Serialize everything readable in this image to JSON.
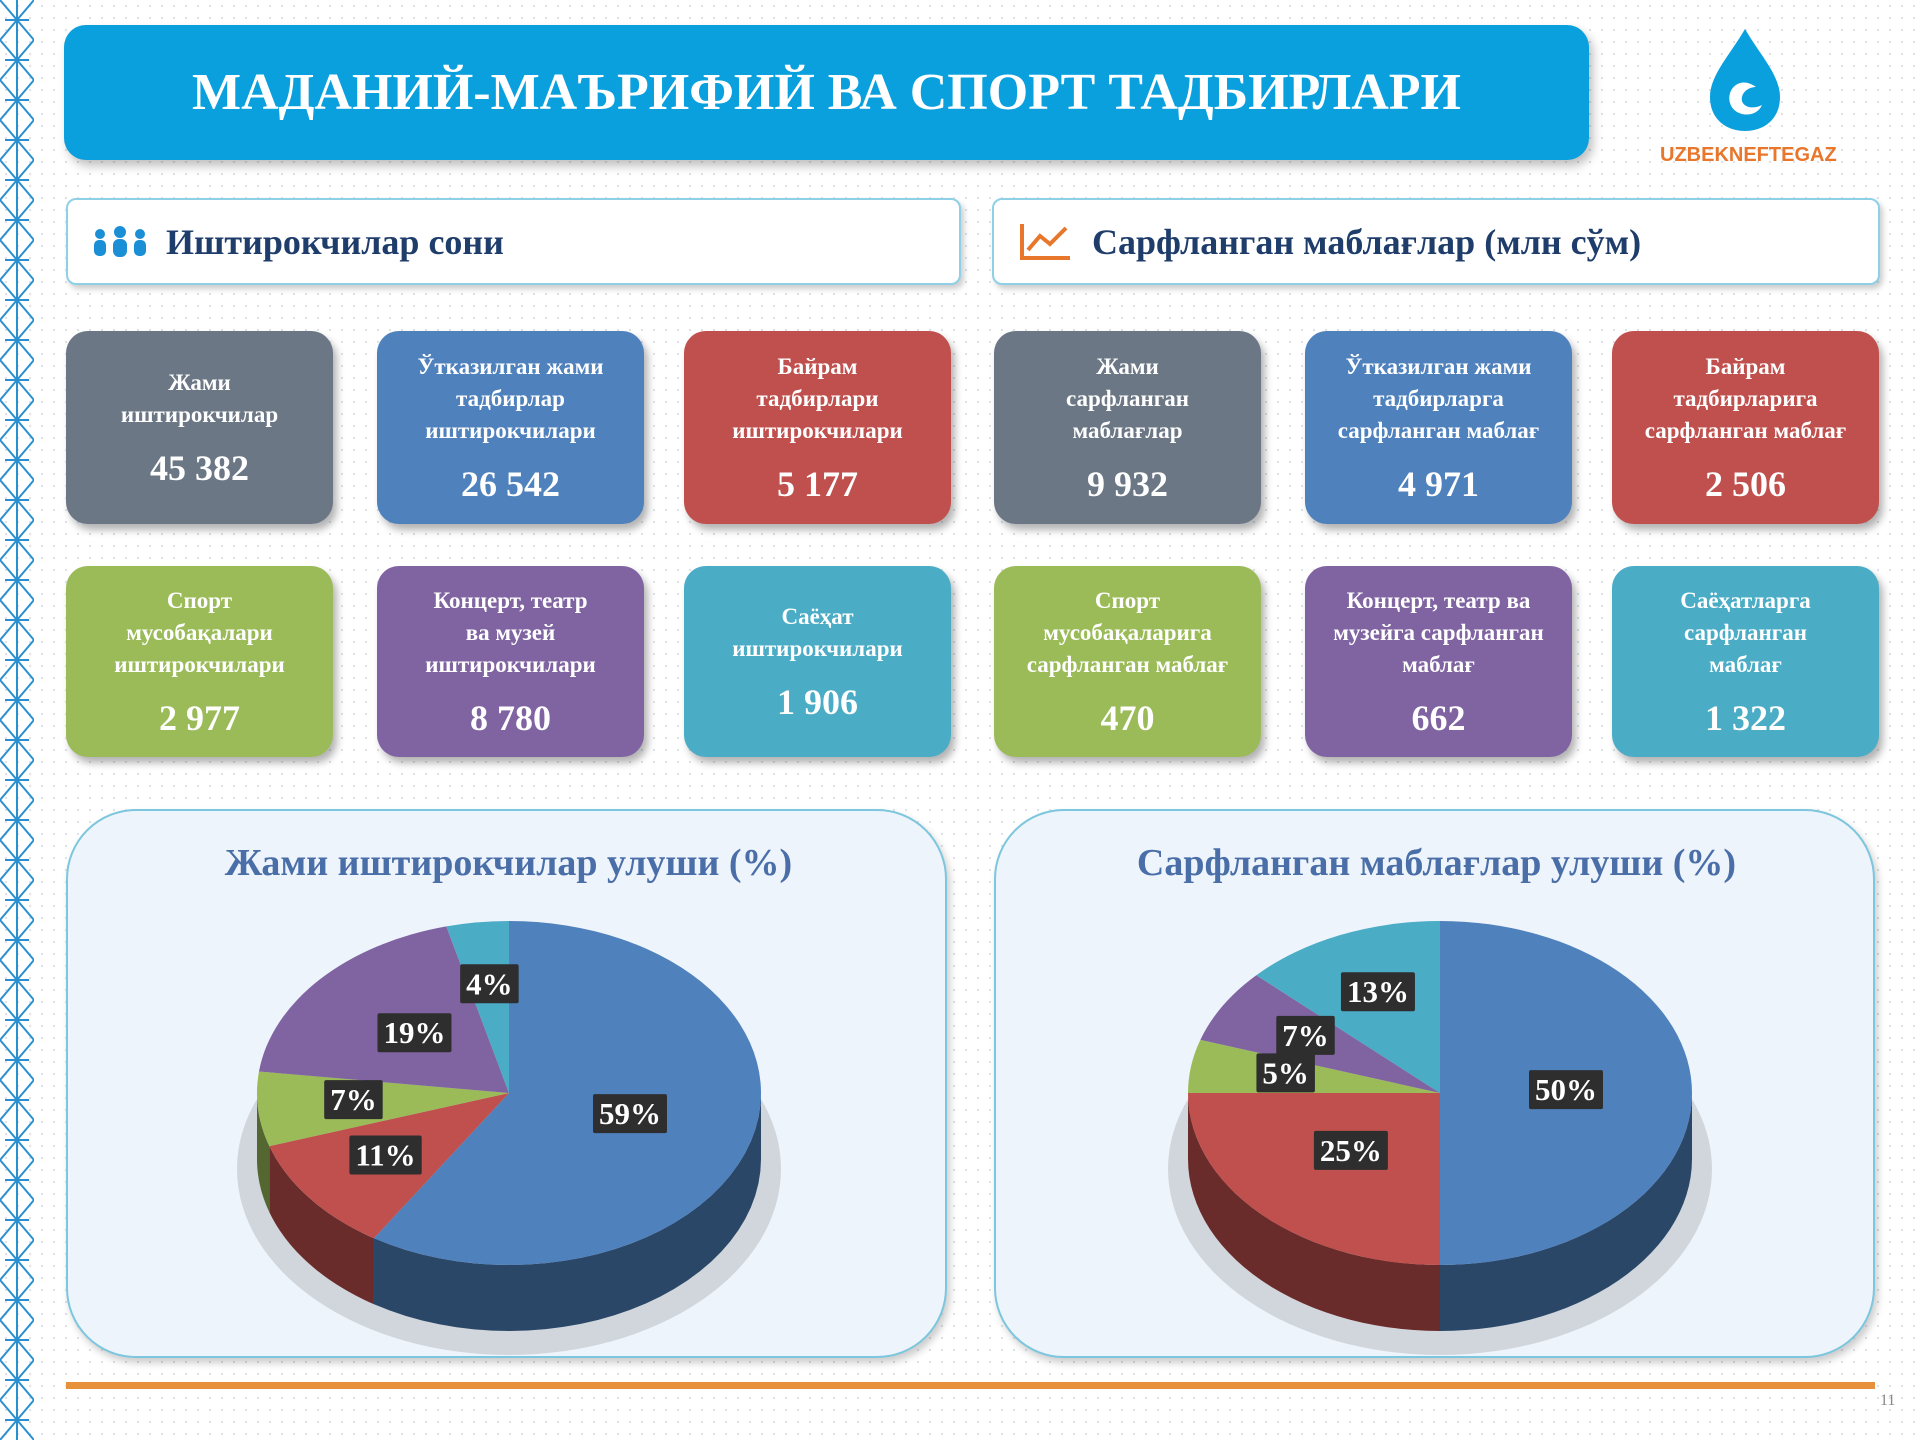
{
  "header": {
    "title": "МАДАНИЙ-МАЪРИФИЙ ВА СПОРТ ТАДБИРЛАРИ"
  },
  "logo": {
    "text": "UZBEKNEFTEGAZ"
  },
  "sections": [
    {
      "title": "Иштирокчилар сони",
      "cards": [
        {
          "label_lines": [
            "Жами",
            "иштирокчилар"
          ],
          "value": "45 382",
          "color": "#6b7785"
        },
        {
          "label_lines": [
            "Ўтказилган жами",
            "тадбирлар",
            "иштирокчилари"
          ],
          "value": "26 542",
          "color": "#4f81bd"
        },
        {
          "label_lines": [
            "Байрам",
            "тадбирлари",
            "иштирокчилари"
          ],
          "value": "5 177",
          "color": "#c0504d"
        },
        {
          "label_lines": [
            "Спорт",
            "мусобақалари",
            "иштирокчилари"
          ],
          "value": "2 977",
          "color": "#9bbb59"
        },
        {
          "label_lines": [
            "Концерт, театр",
            "ва музей",
            "иштирокчилари"
          ],
          "value": "8 780",
          "color": "#8064a2"
        },
        {
          "label_lines": [
            "Саёҳат",
            "иштирокчилари"
          ],
          "value": "1 906",
          "color": "#4bacc6"
        }
      ]
    },
    {
      "title": "Сарфланган маблағлар (млн сўм)",
      "cards": [
        {
          "label_lines": [
            "Жами",
            "сарфланган",
            "маблағлар"
          ],
          "value": "9 932",
          "color": "#6b7785"
        },
        {
          "label_lines": [
            "Ўтказилган жами",
            "тадбирларга",
            "сарфланган маблағ"
          ],
          "value": "4 971",
          "color": "#4f81bd"
        },
        {
          "label_lines": [
            "Байрам",
            "тадбирларига",
            "сарфланган маблағ"
          ],
          "value": "2 506",
          "color": "#c0504d"
        },
        {
          "label_lines": [
            "Спорт",
            "мусобақаларига",
            "сарфланган маблағ"
          ],
          "value": "470",
          "color": "#9bbb59"
        },
        {
          "label_lines": [
            "Концерт, театр ва",
            "музейга сарфланган",
            "маблағ"
          ],
          "value": "662",
          "color": "#8064a2"
        },
        {
          "label_lines": [
            "Саёҳатларга",
            "сарфланган",
            "маблағ"
          ],
          "value": "1 322",
          "color": "#4bacc6"
        }
      ]
    }
  ],
  "chart_data": [
    {
      "type": "pie",
      "title": "Жами иштирокчилар улуши (%)",
      "values": [
        59,
        11,
        7,
        19,
        4
      ],
      "value_labels": [
        "59%",
        "11%",
        "7%",
        "19%",
        "4%"
      ],
      "colors": [
        "#4f81bd",
        "#c0504d",
        "#9bbb59",
        "#8064a2",
        "#4bacc6"
      ]
    },
    {
      "type": "pie",
      "title": "Сарфланган маблағлар улуши (%)",
      "values": [
        50,
        25,
        5,
        7,
        13
      ],
      "value_labels": [
        "50%",
        "25%",
        "5%",
        "7%",
        "13%"
      ],
      "colors": [
        "#4f81bd",
        "#c0504d",
        "#9bbb59",
        "#8064a2",
        "#4bacc6"
      ]
    }
  ],
  "page_number": "11"
}
